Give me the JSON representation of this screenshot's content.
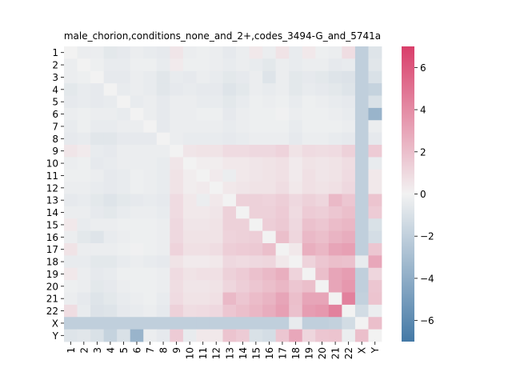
{
  "chart_data": {
    "type": "heatmap",
    "title": "male_chorion,conditions_none_and_2+,codes_3494-G_and_5741a",
    "xlabel": "",
    "ylabel": "",
    "labels": [
      "1",
      "2",
      "3",
      "4",
      "5",
      "6",
      "7",
      "8",
      "9",
      "10",
      "11",
      "12",
      "13",
      "14",
      "15",
      "16",
      "17",
      "18",
      "19",
      "20",
      "21",
      "22",
      "X",
      "Y"
    ],
    "colorbar": {
      "min": -7,
      "max": 7,
      "ticks": [
        "-6",
        "-4",
        "-2",
        "0",
        "2",
        "4",
        "6"
      ],
      "low_color": "#4479a6",
      "mid_color": "#f2f2f2",
      "high_color": "#d93e6a"
    },
    "values": [
      [
        0,
        -0.3,
        -0.3,
        -0.6,
        -0.5,
        -0.3,
        -0.4,
        -0.5,
        0.5,
        -0.3,
        -0.2,
        -0.3,
        -0.5,
        -0.3,
        0.4,
        -0.3,
        0.6,
        -0.4,
        0.4,
        -0.2,
        -0.3,
        0.8,
        -2.0,
        -0.8
      ],
      [
        -0.3,
        0,
        -0.2,
        -0.4,
        -0.4,
        -0.2,
        -0.2,
        -0.4,
        0.3,
        -0.2,
        -0.2,
        -0.3,
        -0.4,
        -0.3,
        -0.4,
        -0.6,
        -0.3,
        -0.4,
        -0.3,
        -0.3,
        -0.5,
        -0.4,
        -2.0,
        -0.7
      ],
      [
        -0.3,
        -0.2,
        0,
        -0.5,
        -0.5,
        -0.3,
        -0.4,
        -0.7,
        -0.4,
        -0.5,
        -0.3,
        -0.4,
        -0.6,
        -0.5,
        -0.3,
        -0.8,
        -0.3,
        -0.6,
        -0.5,
        -0.6,
        -0.8,
        -0.9,
        -2.0,
        -1.0
      ],
      [
        -0.6,
        -0.4,
        -0.5,
        0,
        -0.4,
        -0.3,
        -0.4,
        -0.7,
        -0.5,
        -0.4,
        -0.5,
        -0.5,
        -0.8,
        -0.6,
        -0.3,
        -0.4,
        -0.3,
        -0.6,
        -0.4,
        -0.5,
        -0.6,
        -0.8,
        -2.0,
        -1.8
      ],
      [
        -0.5,
        -0.4,
        -0.5,
        -0.4,
        0,
        -0.4,
        -0.3,
        -0.5,
        -0.3,
        -0.3,
        -0.4,
        -0.4,
        -0.6,
        -0.4,
        -0.2,
        -0.3,
        -0.2,
        -0.4,
        -0.2,
        -0.3,
        -0.4,
        -0.5,
        -2.0,
        -1.0
      ],
      [
        -0.3,
        -0.2,
        -0.3,
        -0.3,
        -0.4,
        0,
        -0.3,
        -0.5,
        -0.3,
        -0.3,
        -0.2,
        -0.2,
        -0.5,
        -0.3,
        -0.2,
        -0.2,
        -0.1,
        -0.3,
        -0.2,
        -0.2,
        -0.3,
        -0.4,
        -2.0,
        -3.6
      ],
      [
        -0.4,
        -0.2,
        -0.4,
        -0.4,
        -0.3,
        -0.3,
        0,
        -0.5,
        -0.3,
        -0.3,
        -0.3,
        -0.3,
        -0.4,
        -0.3,
        -0.2,
        -0.2,
        -0.2,
        -0.4,
        -0.2,
        -0.2,
        -0.2,
        -0.3,
        -2.0,
        -0.3
      ],
      [
        -0.5,
        -0.4,
        -0.7,
        -0.7,
        -0.5,
        -0.5,
        -0.5,
        0,
        -0.3,
        -0.4,
        -0.4,
        -0.4,
        -0.5,
        -0.4,
        -0.3,
        -0.3,
        -0.3,
        -0.5,
        -0.3,
        -0.3,
        -0.4,
        -0.5,
        -2.0,
        -0.5
      ],
      [
        0.5,
        0.3,
        -0.4,
        -0.5,
        -0.3,
        -0.3,
        -0.3,
        -0.3,
        0,
        0.5,
        0.6,
        0.6,
        0.9,
        0.9,
        1.0,
        1.0,
        1.2,
        0.6,
        0.9,
        0.8,
        0.9,
        1.3,
        -2.0,
        1.5
      ],
      [
        -0.3,
        -0.2,
        -0.5,
        -0.4,
        -0.3,
        -0.3,
        -0.3,
        -0.4,
        0.5,
        0,
        0.2,
        0.2,
        0.4,
        0.4,
        0.5,
        0.6,
        0.7,
        0.3,
        0.6,
        0.5,
        0.6,
        0.8,
        -2.0,
        -0.4
      ],
      [
        -0.2,
        -0.2,
        -0.3,
        -0.5,
        -0.4,
        -0.2,
        -0.3,
        -0.4,
        0.6,
        0.2,
        0,
        0.3,
        -0.3,
        0.4,
        0.5,
        0.6,
        0.7,
        0.3,
        0.7,
        0.5,
        0.6,
        0.9,
        -2.0,
        0.4
      ],
      [
        -0.3,
        -0.3,
        -0.4,
        -0.5,
        -0.4,
        -0.2,
        -0.3,
        -0.4,
        0.6,
        0.2,
        0.3,
        0,
        0.4,
        0.5,
        0.6,
        0.6,
        0.8,
        0.4,
        0.7,
        0.6,
        0.7,
        1.0,
        -2.0,
        0.4
      ],
      [
        -0.5,
        -0.4,
        -0.6,
        -0.8,
        -0.6,
        -0.5,
        -0.4,
        -0.5,
        0.9,
        0.4,
        -0.3,
        0.4,
        0,
        1.3,
        1.3,
        1.2,
        1.4,
        1.0,
        1.3,
        1.1,
        2.2,
        1.7,
        -2.0,
        1.8
      ],
      [
        -0.3,
        -0.3,
        -0.5,
        -0.6,
        -0.4,
        -0.3,
        -0.3,
        -0.4,
        0.9,
        0.4,
        0.4,
        0.5,
        1.3,
        0,
        1.3,
        1.3,
        1.5,
        0.9,
        1.5,
        1.4,
        1.7,
        2.0,
        -2.0,
        1.5
      ],
      [
        0.4,
        -0.4,
        -0.3,
        -0.3,
        -0.2,
        -0.2,
        -0.2,
        -0.3,
        1.0,
        0.5,
        0.5,
        0.6,
        1.3,
        1.3,
        0,
        1.4,
        1.6,
        1.0,
        1.9,
        1.7,
        2.1,
        2.3,
        -2.0,
        -1.0
      ],
      [
        -0.3,
        -0.6,
        -0.8,
        -0.4,
        -0.3,
        -0.2,
        -0.2,
        -0.3,
        1.0,
        0.6,
        0.6,
        0.6,
        1.2,
        1.3,
        1.4,
        0,
        2.0,
        1.1,
        2.2,
        2.0,
        2.4,
        2.7,
        -2.0,
        -1.2
      ],
      [
        0.6,
        -0.3,
        -0.3,
        -0.3,
        -0.2,
        -0.1,
        -0.2,
        -0.3,
        1.2,
        0.7,
        0.7,
        0.8,
        1.4,
        1.5,
        1.6,
        2.0,
        0,
        0.4,
        2.6,
        2.3,
        3.0,
        3.2,
        -2.0,
        1.7
      ],
      [
        -0.4,
        -0.4,
        -0.6,
        -0.6,
        -0.4,
        -0.3,
        -0.4,
        -0.5,
        0.6,
        0.3,
        0.3,
        0.4,
        1.0,
        0.9,
        1.0,
        1.1,
        0.4,
        0,
        1.2,
        1.7,
        2.0,
        1.9,
        -0.4,
        2.9
      ],
      [
        0.4,
        -0.3,
        -0.5,
        -0.4,
        -0.2,
        -0.2,
        -0.2,
        -0.3,
        0.9,
        0.6,
        0.7,
        0.7,
        1.3,
        1.5,
        1.9,
        2.2,
        2.6,
        1.2,
        0,
        2.0,
        3.0,
        3.3,
        -2.0,
        1.1
      ],
      [
        -0.2,
        -0.3,
        -0.6,
        -0.5,
        -0.3,
        -0.2,
        -0.2,
        -0.3,
        0.8,
        0.5,
        0.5,
        0.6,
        1.1,
        1.4,
        1.7,
        2.0,
        2.3,
        1.7,
        2.0,
        0,
        3.0,
        3.5,
        -2.0,
        1.7
      ],
      [
        -0.3,
        -0.5,
        -0.8,
        -0.6,
        -0.4,
        -0.3,
        -0.2,
        -0.4,
        0.9,
        0.6,
        0.6,
        0.7,
        2.2,
        1.7,
        2.1,
        2.4,
        3.0,
        2.0,
        3.0,
        3.0,
        0,
        4.4,
        -1.9,
        1.8
      ],
      [
        0.8,
        -0.4,
        -0.9,
        -0.8,
        -0.5,
        -0.4,
        -0.3,
        -0.5,
        1.3,
        0.8,
        0.9,
        1.0,
        1.7,
        2.0,
        2.3,
        2.7,
        3.2,
        1.9,
        3.3,
        3.5,
        4.4,
        0,
        -1.3,
        -0.3
      ],
      [
        -2.0,
        -2.0,
        -2.0,
        -2.0,
        -2.0,
        -2.0,
        -2.0,
        -2.0,
        -2.0,
        -2.0,
        -2.0,
        -2.0,
        -2.0,
        -2.0,
        -2.0,
        -2.0,
        -2.0,
        -0.4,
        -2.0,
        -2.0,
        -1.9,
        -1.3,
        0,
        2.0
      ],
      [
        -0.8,
        -0.7,
        -1.0,
        -1.8,
        -1.0,
        -3.6,
        -0.3,
        -0.5,
        1.5,
        -0.4,
        0.4,
        0.4,
        1.8,
        1.5,
        -1.0,
        -1.2,
        1.7,
        2.9,
        1.1,
        1.7,
        1.8,
        -0.3,
        2.0,
        0
      ]
    ]
  }
}
